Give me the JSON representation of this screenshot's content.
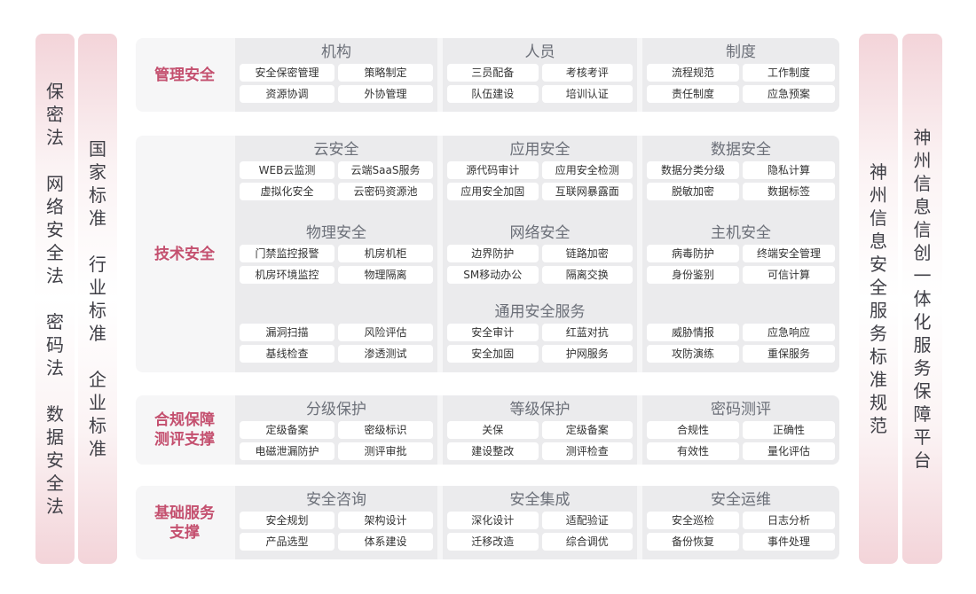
{
  "left_columns": [
    "保密法\n\n网络安全法\n\n密码法\n\n数据安全法",
    "国家标准\n\n行业标准\n\n企业标准"
  ],
  "right_columns": [
    "神州信息安全服务标准规范",
    "神州信息信创一体化服务保障平台"
  ],
  "colors": {
    "accent": "#c4506f",
    "panel": "#ebebed",
    "label_bg": "#f6f6f7"
  },
  "sections": [
    {
      "label": "管理安全",
      "rows": [
        [
          {
            "title": "机构",
            "items": [
              "安全保密管理",
              "策略制定",
              "资源协调",
              "外协管理"
            ]
          },
          {
            "title": "人员",
            "items": [
              "三员配备",
              "考核考评",
              "队伍建设",
              "培训认证"
            ]
          },
          {
            "title": "制度",
            "items": [
              "流程规范",
              "工作制度",
              "责任制度",
              "应急预案"
            ]
          }
        ]
      ]
    },
    {
      "label": "技术安全",
      "rows": [
        [
          {
            "title": "云安全",
            "items": [
              "WEB云监测",
              "云端SaaS服务",
              "虚拟化安全",
              "云密码资源池"
            ]
          },
          {
            "title": "应用安全",
            "items": [
              "源代码审计",
              "应用安全检测",
              "应用安全加固",
              "互联网暴露面"
            ]
          },
          {
            "title": "数据安全",
            "items": [
              "数据分类分级",
              "隐私计算",
              "脱敏加密",
              "数据标签"
            ]
          }
        ],
        [
          {
            "title": "物理安全",
            "items": [
              "门禁监控报警",
              "机房机柜",
              "机房环境监控",
              "物理隔离"
            ]
          },
          {
            "title": "网络安全",
            "items": [
              "边界防护",
              "链路加密",
              "SM移动办公",
              "隔离交换"
            ]
          },
          {
            "title": "主机安全",
            "items": [
              "病毒防护",
              "终端安全管理",
              "身份鉴别",
              "可信计算"
            ]
          }
        ],
        [
          {
            "title": "",
            "items": [
              "漏洞扫描",
              "风险评估",
              "基线检查",
              "渗透测试"
            ]
          },
          {
            "title": "通用安全服务",
            "items": [
              "安全审计",
              "红蓝对抗",
              "安全加固",
              "护网服务"
            ]
          },
          {
            "title": "",
            "items": [
              "威胁情报",
              "应急响应",
              "攻防演练",
              "重保服务"
            ]
          }
        ]
      ]
    },
    {
      "label": "合规保障\n测评支撑",
      "rows": [
        [
          {
            "title": "分级保护",
            "items": [
              "定级备案",
              "密级标识",
              "电磁泄漏防护",
              "测评审批"
            ]
          },
          {
            "title": "等级保护",
            "items": [
              "关保",
              "定级备案",
              "建设整改",
              "测评检查"
            ]
          },
          {
            "title": "密码测评",
            "items": [
              "合规性",
              "正确性",
              "有效性",
              "量化评估"
            ]
          }
        ]
      ]
    },
    {
      "label": "基础服务\n支撑",
      "rows": [
        [
          {
            "title": "安全咨询",
            "items": [
              "安全规划",
              "架构设计",
              "产品选型",
              "体系建设"
            ]
          },
          {
            "title": "安全集成",
            "items": [
              "深化设计",
              "适配验证",
              "迁移改造",
              "综合调优"
            ]
          },
          {
            "title": "安全运维",
            "items": [
              "安全巡检",
              "日志分析",
              "备份恢复",
              "事件处理"
            ]
          }
        ]
      ]
    }
  ]
}
